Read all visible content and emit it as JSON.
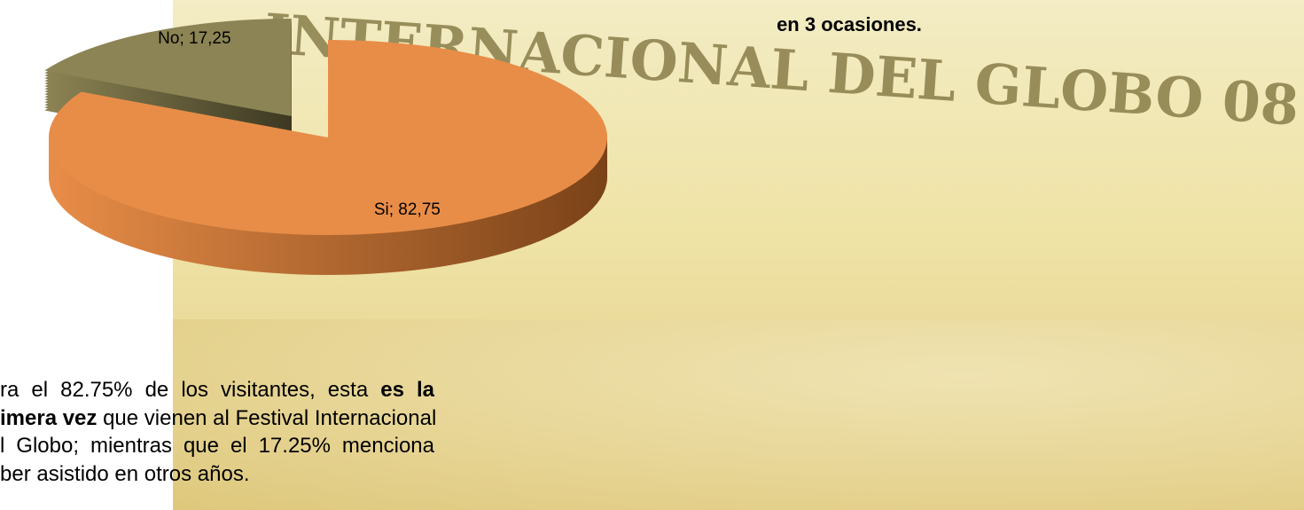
{
  "chart_data": {
    "type": "pie",
    "values": [
      17.25,
      82.75
    ],
    "value_labels": [
      "No; 17,25",
      "Si; 82,75"
    ],
    "colors": [
      "#8c8454",
      "#e88d48"
    ],
    "side_colors": [
      "#3c3822",
      "#7a4218"
    ]
  },
  "top_text": "en 3 ocasiones.",
  "banner": "INTERNACIONAL DEL GLOBO 08",
  "paragraph": [
    [
      {
        "text": "ra el 82.75% de los visitantes, esta ",
        "bold": false
      },
      {
        "text": "es la",
        "bold": true
      }
    ],
    [
      {
        "text": "imera vez",
        "bold": true
      },
      {
        "text": " que vienen al Festival Internacional",
        "bold": false
      }
    ],
    [
      {
        "text": "l Globo; mientras que el 17.25% menciona",
        "bold": false
      }
    ],
    [
      {
        "text": "ber asistido en otros años.",
        "bold": false
      }
    ]
  ]
}
